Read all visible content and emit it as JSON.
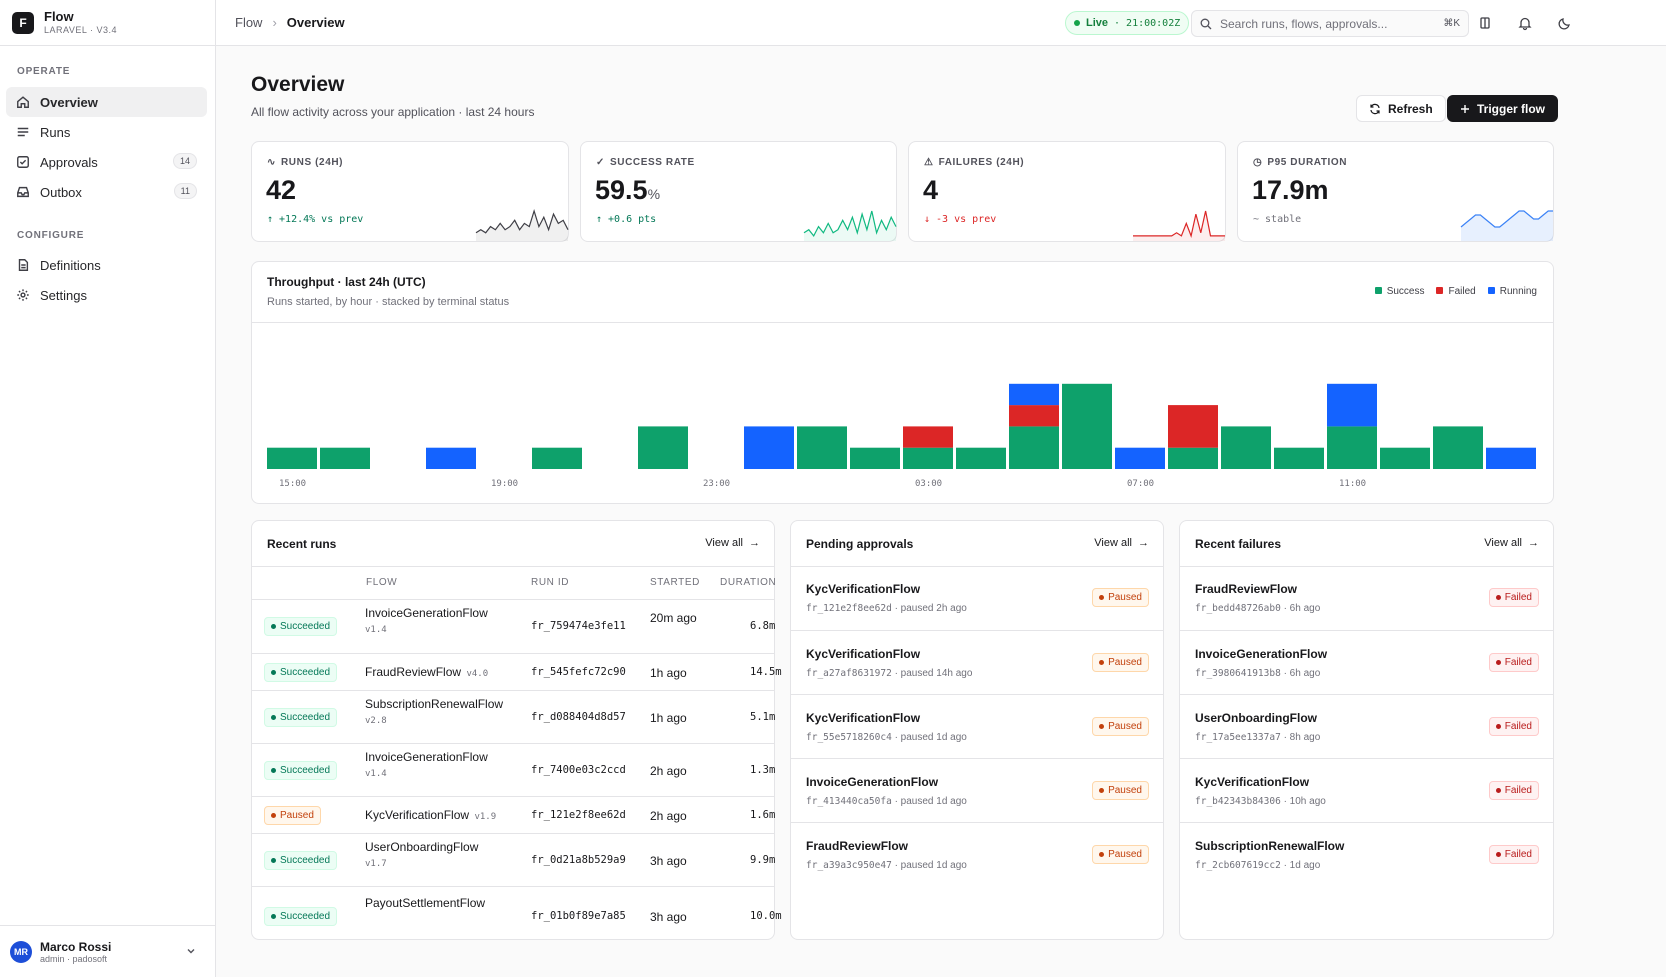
{
  "brand": {
    "title": "Flow",
    "subtitle": "LARAVEL · V3.4",
    "logo": "F"
  },
  "sidebar": {
    "sections": [
      {
        "title": "OPERATE",
        "items": [
          {
            "label": "Overview",
            "icon": "home-icon",
            "active": true
          },
          {
            "label": "Runs",
            "icon": "list-icon"
          },
          {
            "label": "Approvals",
            "icon": "check-square-icon",
            "badge": "14"
          },
          {
            "label": "Outbox",
            "icon": "inbox-icon",
            "badge": "11"
          }
        ]
      },
      {
        "title": "CONFIGURE",
        "items": [
          {
            "label": "Definitions",
            "icon": "file-icon"
          },
          {
            "label": "Settings",
            "icon": "gear-icon"
          }
        ]
      }
    ],
    "user": {
      "initials": "MR",
      "name": "Marco Rossi",
      "role": "admin · padosoft"
    }
  },
  "topbar": {
    "breadcrumb": [
      "Flow",
      "Overview"
    ],
    "live_label": "Live",
    "live_time": "· 21:00:02Z",
    "search_placeholder": "Search runs, flows, approvals...",
    "search_kbd": "⌘K"
  },
  "page": {
    "title": "Overview",
    "subtitle": "All flow activity across your application · last 24 hours",
    "refresh_label": "Refresh",
    "trigger_label": "Trigger flow"
  },
  "kpis": [
    {
      "label": "RUNS (24H)",
      "value": "42",
      "unit": "",
      "delta": "↑ +12.4% vs prev",
      "delta_color": "#047857",
      "spark_color": "#3f3f46",
      "spark": [
        2,
        3,
        2,
        4,
        3,
        5,
        3,
        4,
        6,
        3,
        5,
        4,
        9,
        4,
        7,
        3,
        8,
        5,
        6,
        3
      ]
    },
    {
      "label": "SUCCESS RATE",
      "value": "59.5",
      "unit": "%",
      "delta": "↑ +0.6 pts",
      "delta_color": "#047857",
      "spark_color": "#10b981",
      "spark": [
        2,
        3,
        1,
        4,
        2,
        5,
        2,
        3,
        6,
        3,
        7,
        2,
        8,
        3,
        9,
        2,
        6,
        3,
        7,
        4
      ]
    },
    {
      "label": "FAILURES (24H)",
      "value": "4",
      "unit": "",
      "delta": "↓ -3 vs prev",
      "delta_color": "#dc2626",
      "spark_color": "#dc2626",
      "spark": [
        1,
        1,
        1,
        1,
        1,
        1,
        1,
        1,
        1,
        2,
        1,
        5,
        1,
        8,
        2,
        9,
        1,
        1,
        1,
        1
      ]
    },
    {
      "label": "P95 DURATION",
      "value": "17.9m",
      "unit": "",
      "delta": "~ stable",
      "delta_color": "#71717a",
      "spark_color": "#3b82f6",
      "spark": [
        3,
        4,
        5,
        6,
        6,
        5,
        4,
        3,
        3,
        4,
        5,
        6,
        7,
        7,
        6,
        5,
        5,
        6,
        7,
        7
      ]
    }
  ],
  "throughput": {
    "title": "Throughput · last 24h (UTC)",
    "subtitle": "Runs started, by hour · stacked by terminal status",
    "legend": [
      {
        "name": "Success",
        "color": "#0ea16b"
      },
      {
        "name": "Failed",
        "color": "#dc2626"
      },
      {
        "name": "Running",
        "color": "#1463ff"
      }
    ]
  },
  "chart_data": {
    "type": "bar",
    "title": "Throughput · last 24h (UTC)",
    "categories": [
      "15:00",
      "16:00",
      "17:00",
      "18:00",
      "19:00",
      "20:00",
      "21:00",
      "22:00",
      "23:00",
      "00:00",
      "01:00",
      "02:00",
      "03:00",
      "04:00",
      "05:00",
      "06:00",
      "07:00",
      "08:00",
      "09:00",
      "10:00",
      "11:00",
      "12:00",
      "13:00",
      "14:00"
    ],
    "tick_labels": [
      "15:00",
      "19:00",
      "23:00",
      "03:00",
      "07:00",
      "11:00"
    ],
    "series": [
      {
        "name": "Success",
        "color": "#0ea16b",
        "values": [
          1,
          1,
          0,
          0,
          0,
          1,
          0,
          2,
          0,
          0,
          2,
          1,
          1,
          1,
          2,
          4,
          0,
          1,
          2,
          1,
          2,
          1,
          2,
          0
        ]
      },
      {
        "name": "Failed",
        "color": "#dc2626",
        "values": [
          0,
          0,
          0,
          0,
          0,
          0,
          0,
          0,
          0,
          0,
          0,
          0,
          1,
          0,
          1,
          0,
          0,
          2,
          0,
          0,
          0,
          0,
          0,
          0
        ]
      },
      {
        "name": "Running",
        "color": "#1463ff",
        "values": [
          0,
          0,
          0,
          1,
          0,
          0,
          0,
          0,
          0,
          2,
          0,
          0,
          0,
          0,
          1,
          0,
          1,
          0,
          0,
          0,
          2,
          0,
          0,
          1
        ]
      }
    ],
    "stacked": true,
    "ylim": [
      0,
      6
    ]
  },
  "recent_runs": {
    "title": "Recent runs",
    "view_all": "View all",
    "columns": [
      "FLOW",
      "RUN ID",
      "STARTED",
      "DURATION"
    ],
    "rows": [
      {
        "status": "Succeeded",
        "flow": "InvoiceGenerationFlow",
        "version": "v1.4",
        "run_id": "fr_759474e3fe11",
        "started": "20m ago",
        "duration": "6.8m"
      },
      {
        "status": "Succeeded",
        "flow": "FraudReviewFlow",
        "version": "v4.0",
        "run_id": "fr_545fefc72c90",
        "started": "1h ago",
        "duration": "14.5m"
      },
      {
        "status": "Succeeded",
        "flow": "SubscriptionRenewalFlow",
        "version": "v2.8",
        "run_id": "fr_d088404d8d57",
        "started": "1h ago",
        "duration": "5.1m"
      },
      {
        "status": "Succeeded",
        "flow": "InvoiceGenerationFlow",
        "version": "v1.4",
        "run_id": "fr_7400e03c2ccd",
        "started": "2h ago",
        "duration": "1.3m"
      },
      {
        "status": "Paused",
        "flow": "KycVerificationFlow",
        "version": "v1.9",
        "run_id": "fr_121e2f8ee62d",
        "started": "2h ago",
        "duration": "1.6m"
      },
      {
        "status": "Succeeded",
        "flow": "UserOnboardingFlow",
        "version": "v1.7",
        "run_id": "fr_0d21a8b529a9",
        "started": "3h ago",
        "duration": "9.9m"
      },
      {
        "status": "Succeeded",
        "flow": "PayoutSettlementFlow",
        "version": "",
        "run_id": "fr_01b0f89e7a85",
        "started": "3h ago",
        "duration": "10.0m"
      }
    ]
  },
  "pending_approvals": {
    "title": "Pending approvals",
    "view_all": "View all",
    "items": [
      {
        "flow": "KycVerificationFlow",
        "run_id": "fr_121e2f8ee62d",
        "meta": "· paused 2h ago",
        "status": "Paused"
      },
      {
        "flow": "KycVerificationFlow",
        "run_id": "fr_a27af8631972",
        "meta": "· paused 14h ago",
        "status": "Paused"
      },
      {
        "flow": "KycVerificationFlow",
        "run_id": "fr_55e5718260c4",
        "meta": "· paused 1d ago",
        "status": "Paused"
      },
      {
        "flow": "InvoiceGenerationFlow",
        "run_id": "fr_413440ca50fa",
        "meta": "· paused 1d ago",
        "status": "Paused"
      },
      {
        "flow": "FraudReviewFlow",
        "run_id": "fr_a39a3c950e47",
        "meta": "· paused 1d ago",
        "status": "Paused"
      }
    ]
  },
  "recent_failures": {
    "title": "Recent failures",
    "view_all": "View all",
    "items": [
      {
        "flow": "FraudReviewFlow",
        "run_id": "fr_bedd48726ab0",
        "meta": "· 6h ago",
        "status": "Failed"
      },
      {
        "flow": "InvoiceGenerationFlow",
        "run_id": "fr_3980641913b8",
        "meta": "· 6h ago",
        "status": "Failed"
      },
      {
        "flow": "UserOnboardingFlow",
        "run_id": "fr_17a5ee1337a7",
        "meta": "· 8h ago",
        "status": "Failed"
      },
      {
        "flow": "KycVerificationFlow",
        "run_id": "fr_b42343b84306",
        "meta": "· 10h ago",
        "status": "Failed"
      },
      {
        "flow": "SubscriptionRenewalFlow",
        "run_id": "fr_2cb607619cc2",
        "meta": "· 1d ago",
        "status": "Failed"
      }
    ]
  }
}
